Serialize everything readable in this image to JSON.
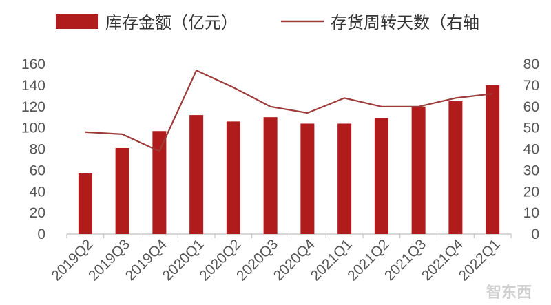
{
  "colors": {
    "bar": "#b01c1c",
    "line": "#9e3a3a",
    "axis": "#bfbfbf"
  },
  "watermark": "智东西",
  "chart_data": {
    "type": "bar+line",
    "categories": [
      "2019Q2",
      "2019Q3",
      "2019Q4",
      "2020Q1",
      "2020Q2",
      "2020Q3",
      "2020Q4",
      "2021Q1",
      "2021Q2",
      "2021Q3",
      "2021Q4",
      "2022Q1"
    ],
    "series": [
      {
        "name": "库存金额（亿元）",
        "type": "bar",
        "axis": "left",
        "values": [
          57,
          81,
          97,
          112,
          106,
          110,
          104,
          104,
          109,
          120,
          125,
          140
        ]
      },
      {
        "name": "存货周转天数（右轴",
        "type": "line",
        "axis": "right",
        "values": [
          48,
          47,
          39,
          77,
          69,
          60,
          57,
          64,
          60,
          60,
          64,
          66
        ]
      }
    ],
    "y_left": {
      "min": 0,
      "max": 160,
      "ticks": [
        "0",
        "20",
        "40",
        "60",
        "80",
        "100",
        "120",
        "140",
        "160"
      ]
    },
    "y_right": {
      "min": 0,
      "max": 80,
      "ticks": [
        "0",
        "10",
        "20",
        "30",
        "40",
        "50",
        "60",
        "70",
        "80"
      ]
    },
    "legend": "top",
    "grid": false
  }
}
